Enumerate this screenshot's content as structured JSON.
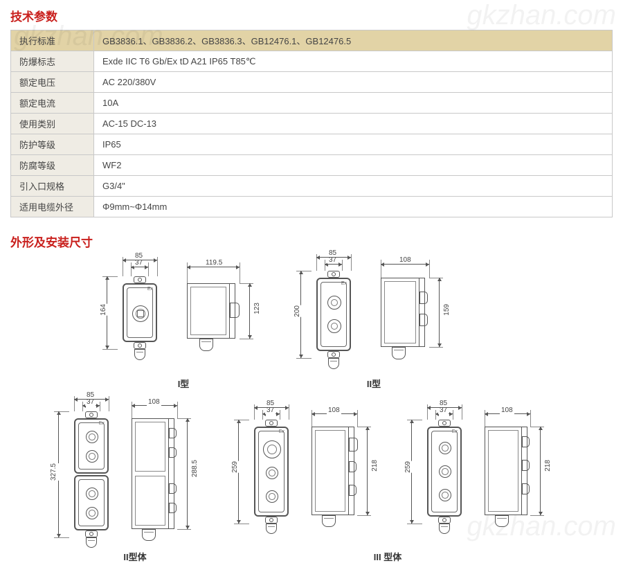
{
  "titles": {
    "spec": "技术参数",
    "dims": "外形及安装尺寸"
  },
  "spec_rows": [
    {
      "label": "执行标准",
      "value": "GB3836.1、GB3836.2、GB3836.3、GB12476.1、GB12476.5",
      "hl": true
    },
    {
      "label": "防爆标志",
      "value": "Exde IIC T6 Gb/Ex tD A21 IP65 T85℃",
      "hl": false
    },
    {
      "label": "额定电压",
      "value": "AC 220/380V",
      "hl": false
    },
    {
      "label": "额定电流",
      "value": "10A",
      "hl": false
    },
    {
      "label": "使用类别",
      "value": "AC-15   DC-13",
      "hl": false
    },
    {
      "label": "防护等级",
      "value": "IP65",
      "hl": false
    },
    {
      "label": "防腐等级",
      "value": "WF2",
      "hl": false
    },
    {
      "label": "引入口规格",
      "value": "G3/4\"",
      "hl": false
    },
    {
      "label": "适用电缆外径",
      "value": "Φ9mm~Φ14mm",
      "hl": false
    }
  ],
  "watermark": "gkzhan.com",
  "ex_mark": "Ex",
  "type_labels": {
    "t1": "I型",
    "t2": "II型",
    "t2b": "II型体",
    "t3b": "III 型体"
  },
  "dims": {
    "w85": "85",
    "w37": "37",
    "w1195": "119.5",
    "w108": "108",
    "h164": "164",
    "h123": "123",
    "h200": "200",
    "h159": "159",
    "h3275": "327.5",
    "h2885": "288.5",
    "h259": "259",
    "h218": "218"
  },
  "colors": {
    "accent": "#c9201d",
    "hl_bg": "#e2d3a6",
    "row_bg": "#efece4",
    "border": "#c8c8c8",
    "line": "#555555"
  }
}
